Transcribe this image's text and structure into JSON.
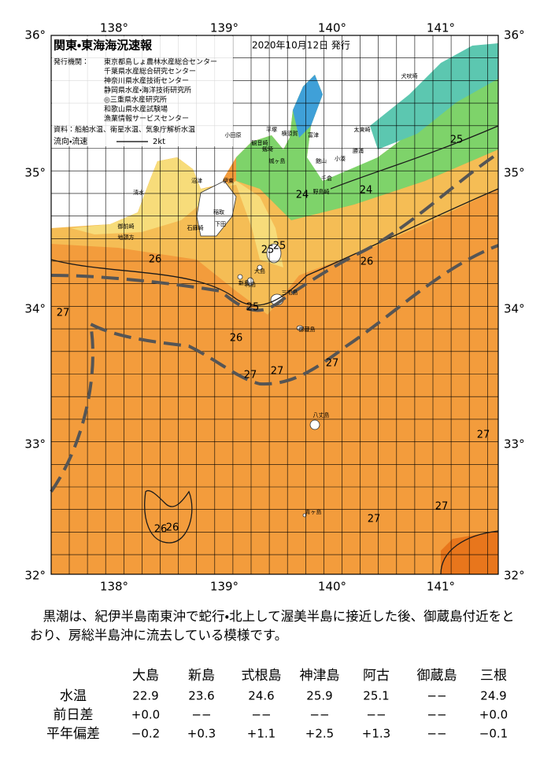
{
  "header": {
    "title": "関東・東海海況速報",
    "date": "2020年10月12日 発行",
    "issuer_label": "発行機関：",
    "issuers": [
      "東京都島しょ農林水産総合センター",
      "千葉県水産総合研究センター",
      "神奈川県水産技術センター",
      "静岡県水産・海洋技術研究所",
      "◎三重県水産研究所",
      "和歌山県水産試験場",
      "漁業情報サービスセンター"
    ],
    "sources": "資料：船舶水温、衛星水温、気象庁解析水温",
    "flow_label": "流向・流速",
    "flow_unit": "2kt"
  },
  "map": {
    "lat_labels": [
      "36°",
      "35°",
      "34°",
      "33°",
      "32°"
    ],
    "lon_labels": [
      "138°",
      "139°",
      "140°",
      "141°"
    ],
    "contour_labels": [
      "25",
      "24",
      "24",
      "26",
      "25",
      "25",
      "26",
      "27",
      "25",
      "26",
      "27",
      "27",
      "27",
      "27",
      "27",
      "27",
      "26",
      "26"
    ],
    "place_names": [
      "犬吠埼",
      "太東崎",
      "勝浦",
      "小湊",
      "館山",
      "千倉",
      "野島崎",
      "平塚",
      "横須賀",
      "観音崎",
      "富津",
      "剱埼",
      "城ヶ島",
      "小田原",
      "伊東",
      "沼津",
      "清水",
      "稲取",
      "石廊崎",
      "下田",
      "地頭方",
      "御前崎",
      "大島",
      "利島",
      "新島",
      "三宅島",
      "御蔵島",
      "八丈島",
      "青ヶ島"
    ]
  },
  "description": "黒潮は、紀伊半島南東沖で蛇行・北上して渥美半島に接近した後、御蔵島付近をとおり、房総半島沖に流去している模様です。",
  "table": {
    "columns": [
      "大島",
      "新島",
      "式根島",
      "神津島",
      "阿古",
      "御蔵島",
      "三根"
    ],
    "rows": [
      {
        "label": "水温",
        "cells": [
          "22.9",
          "23.6",
          "24.6",
          "25.9",
          "25.1",
          "−−",
          "24.9"
        ]
      },
      {
        "label": "前日差",
        "cells": [
          "+0.0",
          "−−",
          "−−",
          "−−",
          "−−",
          "−−",
          "+0.0"
        ]
      },
      {
        "label": "平年偏差",
        "cells": [
          "−0.2",
          "+0.3",
          "+1.1",
          "+2.5",
          "+1.3",
          "−−",
          "−0.1"
        ]
      }
    ]
  }
}
